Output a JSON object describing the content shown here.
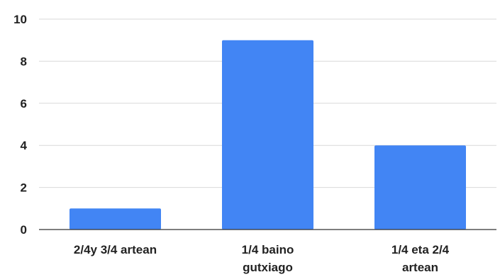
{
  "chart_data": {
    "type": "bar",
    "title": "",
    "xlabel": "",
    "ylabel": "",
    "categories": [
      [
        "2/4y 3/4 artean"
      ],
      [
        "1/4 baino",
        "gutxiago"
      ],
      [
        "1/4 eta 2/4",
        "artean"
      ]
    ],
    "values": [
      1,
      9,
      4
    ],
    "ylim": [
      0,
      10
    ],
    "yticks": [
      0,
      2,
      4,
      6,
      8,
      10
    ],
    "grid": true,
    "legend": "none",
    "colors": {
      "bar": "#4285f4",
      "grid": "#d9d9d9",
      "axis": "#333333",
      "text": "#222222"
    }
  }
}
